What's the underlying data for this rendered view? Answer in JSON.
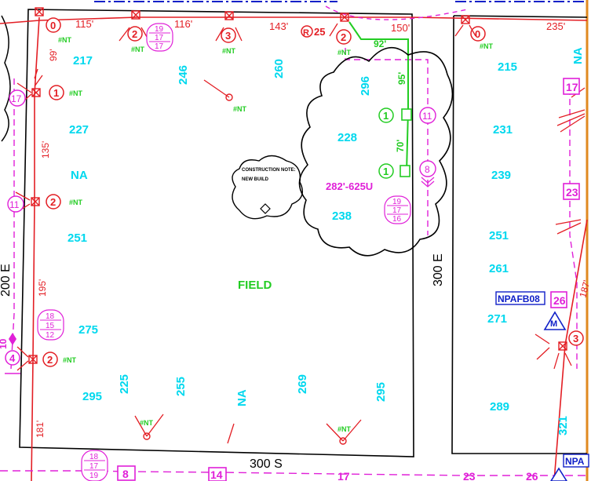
{
  "parcel_numbers": [
    "217",
    "227",
    "NA",
    "251",
    "275",
    "295",
    "246",
    "260",
    "296",
    "228",
    "238",
    "225",
    "255",
    "NA",
    "269",
    "295",
    "215",
    "231",
    "239",
    "251",
    "261",
    "271",
    "289",
    "NA",
    "321"
  ],
  "span_lengths": [
    "115'",
    "116'",
    "143'",
    "150'",
    "92'",
    "99'",
    "135'",
    "195'",
    "181'",
    "95'",
    "70'",
    "235'",
    "187'"
  ],
  "street_labels": [
    "200 E",
    "300 E",
    "300 S"
  ],
  "field_label": "FIELD",
  "callout_label": "282'-625U",
  "device_tag": "NPAFB08",
  "device_tag_partial": "NPA",
  "construction_note": {
    "line1": "CONSTRUCTION NOTE:",
    "line2": "NEW BUILD"
  },
  "nt_tag": "#NT",
  "r_marker": {
    "symbol": "R",
    "value": "25"
  },
  "pole_circles": [
    "0",
    "2",
    "3",
    "2",
    "0",
    "1",
    "2",
    "2",
    "1",
    "1",
    "3",
    "4"
  ],
  "magenta_circles": [
    "17",
    "11",
    "11",
    "8",
    "4"
  ],
  "magenta_boxes": [
    "17",
    "23",
    "26",
    "8",
    "14",
    "17",
    "23",
    "26"
  ],
  "vertical_tags": [
    "10"
  ],
  "meter_symbol": "M",
  "stacked_labels": [
    [
      "19",
      "17",
      "17"
    ],
    [
      "19",
      "17",
      "16"
    ],
    [
      "18",
      "15",
      "12"
    ],
    [
      "18",
      "17",
      "19"
    ]
  ],
  "colors": {
    "red": "#e31e24",
    "cyan": "#00d8ee",
    "green": "#22cc22",
    "magenta": "#e020d8",
    "blue": "#1020c8",
    "frame": "#e08a20"
  }
}
